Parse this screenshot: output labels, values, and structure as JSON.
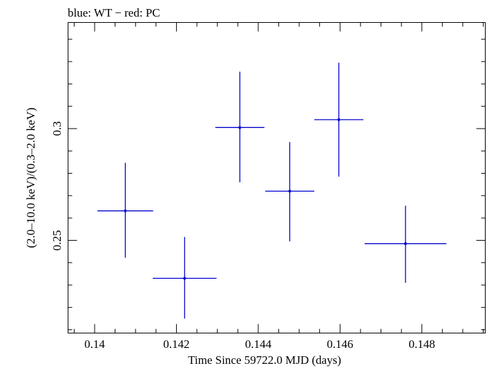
{
  "chart_data": {
    "type": "scatter",
    "title": "blue: WT − red: PC",
    "xlabel": "Time Since 59722.0 MJD (days)",
    "ylabel": "(2.0–10.0 keV)/(0.3–2.0 keV)",
    "xlim": [
      0.13935,
      0.14955
    ],
    "ylim": [
      0.2085,
      0.3475
    ],
    "x_ticks": [
      0.14,
      0.142,
      0.144,
      0.146,
      0.148
    ],
    "x_tick_labels": [
      "0.14",
      "0.142",
      "0.144",
      "0.146",
      "0.148"
    ],
    "y_ticks": [
      0.25,
      0.3
    ],
    "y_tick_labels": [
      "0.25",
      "0.3"
    ],
    "grid": false,
    "series": [
      {
        "name": "WT",
        "color": "#0000cc",
        "points": [
          {
            "x": 0.14075,
            "y": 0.2632,
            "xerr": 0.00068,
            "yerr_low": 0.021,
            "yerr_high": 0.0215
          },
          {
            "x": 0.1422,
            "y": 0.233,
            "xerr": 0.00078,
            "yerr_low": 0.018,
            "yerr_high": 0.0185
          },
          {
            "x": 0.14355,
            "y": 0.3005,
            "xerr": 0.0006,
            "yerr_low": 0.0245,
            "yerr_high": 0.025
          },
          {
            "x": 0.14477,
            "y": 0.272,
            "xerr": 0.0006,
            "yerr_low": 0.0225,
            "yerr_high": 0.022
          },
          {
            "x": 0.14597,
            "y": 0.304,
            "xerr": 0.0006,
            "yerr_low": 0.0255,
            "yerr_high": 0.0255
          },
          {
            "x": 0.1476,
            "y": 0.2485,
            "xerr": 0.001,
            "yerr_low": 0.0175,
            "yerr_high": 0.017
          }
        ]
      }
    ]
  }
}
